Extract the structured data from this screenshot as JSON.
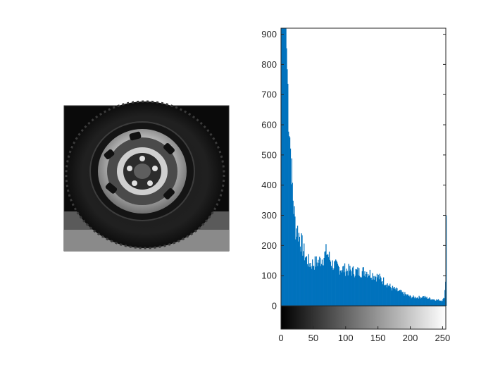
{
  "figure": {
    "image_panel": {
      "description_icon": "wheel-photo",
      "colormap": "gray"
    }
  },
  "chart_data": {
    "type": "histogram",
    "title": "",
    "xlabel": "",
    "ylabel": "",
    "xlim": [
      0,
      255
    ],
    "ylim": [
      0,
      920
    ],
    "grid": false,
    "bar_color": "#0072BD",
    "colorbar": "grayscale",
    "x_ticks": [
      0,
      50,
      100,
      150,
      200,
      250
    ],
    "y_ticks": [
      0,
      100,
      200,
      300,
      400,
      500,
      600,
      700,
      800,
      900
    ],
    "x_tick_labels": [
      "0",
      "50",
      "100",
      "150",
      "200",
      "250"
    ],
    "y_tick_labels": [
      "0",
      "100",
      "200",
      "300",
      "400",
      "500",
      "600",
      "700",
      "800",
      "900"
    ],
    "anchors": [
      [
        0,
        920
      ],
      [
        4,
        920
      ],
      [
        7,
        920
      ],
      [
        10,
        720
      ],
      [
        12,
        620
      ],
      [
        14,
        520
      ],
      [
        16,
        430
      ],
      [
        18,
        360
      ],
      [
        20,
        300
      ],
      [
        22,
        260
      ],
      [
        25,
        250
      ],
      [
        28,
        230
      ],
      [
        32,
        200
      ],
      [
        36,
        170
      ],
      [
        40,
        150
      ],
      [
        45,
        140
      ],
      [
        50,
        140
      ],
      [
        55,
        145
      ],
      [
        60,
        150
      ],
      [
        65,
        160
      ],
      [
        70,
        180
      ],
      [
        73,
        165
      ],
      [
        78,
        140
      ],
      [
        85,
        130
      ],
      [
        90,
        125
      ],
      [
        100,
        120
      ],
      [
        110,
        115
      ],
      [
        120,
        112
      ],
      [
        130,
        115
      ],
      [
        140,
        105
      ],
      [
        150,
        95
      ],
      [
        160,
        80
      ],
      [
        165,
        70
      ],
      [
        170,
        60
      ],
      [
        180,
        50
      ],
      [
        190,
        40
      ],
      [
        200,
        30
      ],
      [
        210,
        28
      ],
      [
        220,
        30
      ],
      [
        230,
        24
      ],
      [
        240,
        20
      ],
      [
        248,
        18
      ],
      [
        252,
        25
      ],
      [
        254,
        80
      ],
      [
        255,
        300
      ]
    ]
  }
}
